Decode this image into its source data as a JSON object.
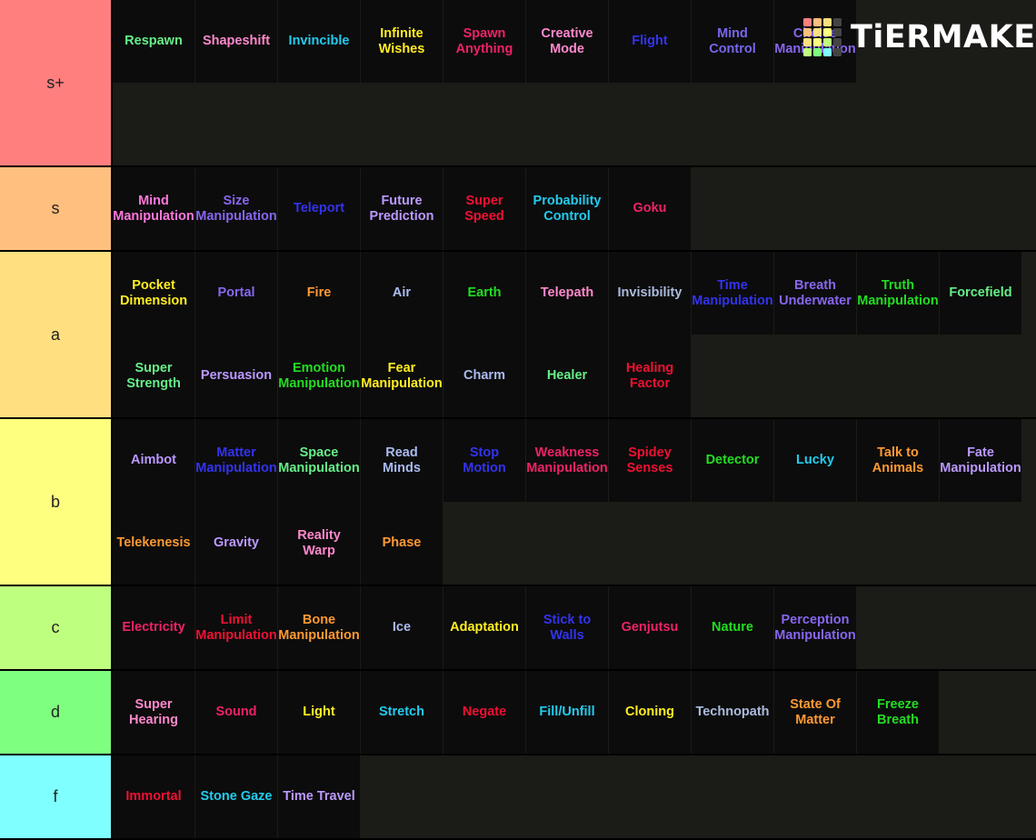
{
  "brand": {
    "name": "TiERMAKER",
    "logo_colors": [
      "#ff7f7f",
      "#ffbf7f",
      "#ffdf7f",
      "#444444",
      "#ffbf7f",
      "#ffdf7f",
      "#ffff7f",
      "#444444",
      "#ffdf7f",
      "#ffff7f",
      "#bfff7f",
      "#444444",
      "#bfff7f",
      "#7fff7f",
      "#7fffff",
      "#444444"
    ]
  },
  "tiers": [
    {
      "label": "s+",
      "color": "#ff7f7f",
      "height": 184,
      "items": [
        {
          "text": "Respawn",
          "color": "#66ee88"
        },
        {
          "text": "Shapeshift",
          "color": "#ff88cc"
        },
        {
          "text": "Invincible",
          "color": "#22ccee"
        },
        {
          "text": "Infinite\nWishes",
          "color": "#ffee22"
        },
        {
          "text": "Spawn\nAnything",
          "color": "#ee2266"
        },
        {
          "text": "Creative\nMode",
          "color": "#ff88cc"
        },
        {
          "text": "Flight",
          "color": "#3333ee"
        },
        {
          "text": "Mind\nControl",
          "color": "#7766ee"
        },
        {
          "text": "Choice\nManipulation",
          "color": "#8866ee"
        }
      ]
    },
    {
      "label": "s",
      "color": "#ffbf7f",
      "height": 93,
      "items": [
        {
          "text": "Mind\nManipulation",
          "color": "#ff77dd"
        },
        {
          "text": "Size\nManipulation",
          "color": "#8866ee"
        },
        {
          "text": "Teleport",
          "color": "#3333ee"
        },
        {
          "text": "Future\nPrediction",
          "color": "#bb99ff"
        },
        {
          "text": "Super\nSpeed",
          "color": "#ee1133"
        },
        {
          "text": "Probability\nControl",
          "color": "#22ccee"
        },
        {
          "text": "Goku",
          "color": "#ee2266"
        }
      ]
    },
    {
      "label": "a",
      "color": "#ffdf7f",
      "height": 184,
      "items": [
        {
          "text": "Pocket\nDimension",
          "color": "#ffee22"
        },
        {
          "text": "Portal",
          "color": "#8866ee"
        },
        {
          "text": "Fire",
          "color": "#ff9933"
        },
        {
          "text": "Air",
          "color": "#aabbee"
        },
        {
          "text": "Earth",
          "color": "#22dd22"
        },
        {
          "text": "Telepath",
          "color": "#ff88cc"
        },
        {
          "text": "Invisibility",
          "color": "#aabbdd"
        },
        {
          "text": "Time\nManipulation",
          "color": "#3333ee"
        },
        {
          "text": "Breath\nUnderwater",
          "color": "#8866ee"
        },
        {
          "text": "Truth\nManipulation",
          "color": "#22dd22"
        },
        {
          "text": "Forcefield",
          "color": "#66ee88"
        },
        {
          "text": "Super\nStrength",
          "color": "#66ee88"
        },
        {
          "text": "Persuasion",
          "color": "#bb99ff"
        },
        {
          "text": "Emotion\nManipulation",
          "color": "#22dd22"
        },
        {
          "text": "Fear\nManipulation",
          "color": "#ffee22"
        },
        {
          "text": "Charm",
          "color": "#aabbee"
        },
        {
          "text": "Healer",
          "color": "#66ee88"
        },
        {
          "text": "Healing\nFactor",
          "color": "#ee1133"
        }
      ]
    },
    {
      "label": "b",
      "color": "#ffff7f",
      "height": 184,
      "items": [
        {
          "text": "Aimbot",
          "color": "#bb99ff"
        },
        {
          "text": "Matter\nManipulation",
          "color": "#3333ee"
        },
        {
          "text": "Space\nManipulation",
          "color": "#66ee88"
        },
        {
          "text": "Read\nMinds",
          "color": "#aabbee"
        },
        {
          "text": "Stop\nMotion",
          "color": "#3333ee"
        },
        {
          "text": "Weakness\nManipulation",
          "color": "#ee2266"
        },
        {
          "text": "Spidey\nSenses",
          "color": "#ee1133"
        },
        {
          "text": "Detector",
          "color": "#22dd22"
        },
        {
          "text": "Lucky",
          "color": "#22ccee"
        },
        {
          "text": "Talk to\nAnimals",
          "color": "#ff9933"
        },
        {
          "text": "Fate\nManipulation",
          "color": "#bb99ff"
        },
        {
          "text": "Telekenesis",
          "color": "#ff9933"
        },
        {
          "text": "Gravity",
          "color": "#bb99ff"
        },
        {
          "text": "Reality\nWarp",
          "color": "#ff88cc"
        },
        {
          "text": "Phase",
          "color": "#ff9933"
        }
      ]
    },
    {
      "label": "c",
      "color": "#bfff7f",
      "height": 93,
      "items": [
        {
          "text": "Electricity",
          "color": "#ee2266"
        },
        {
          "text": "Limit\nManipulation",
          "color": "#ee1133"
        },
        {
          "text": "Bone\nManipulation",
          "color": "#ff9933"
        },
        {
          "text": "Ice",
          "color": "#aabbee"
        },
        {
          "text": "Adaptation",
          "color": "#ffee22"
        },
        {
          "text": "Stick to\nWalls",
          "color": "#3333ee"
        },
        {
          "text": "Genjutsu",
          "color": "#ee2266"
        },
        {
          "text": "Nature",
          "color": "#22dd22"
        },
        {
          "text": "Perception\nManipulation",
          "color": "#8866ee"
        }
      ]
    },
    {
      "label": "d",
      "color": "#7fff7f",
      "height": 93,
      "items": [
        {
          "text": "Super\nHearing",
          "color": "#ff88cc"
        },
        {
          "text": "Sound",
          "color": "#ee2266"
        },
        {
          "text": "Light",
          "color": "#ffee22"
        },
        {
          "text": "Stretch",
          "color": "#22ccee"
        },
        {
          "text": "Negate",
          "color": "#ee1133"
        },
        {
          "text": "Fill/Unfill",
          "color": "#22ccee"
        },
        {
          "text": "Cloning",
          "color": "#ffee22"
        },
        {
          "text": "Technopath",
          "color": "#aabbdd"
        },
        {
          "text": "State Of\nMatter",
          "color": "#ff9933"
        },
        {
          "text": "Freeze\nBreath",
          "color": "#22dd22"
        }
      ]
    },
    {
      "label": "f",
      "color": "#7fffff",
      "height": 93,
      "items": [
        {
          "text": "Immortal",
          "color": "#ee1133"
        },
        {
          "text": "Stone Gaze",
          "color": "#22ccee"
        },
        {
          "text": "Time Travel",
          "color": "#bb99ff"
        }
      ]
    }
  ]
}
